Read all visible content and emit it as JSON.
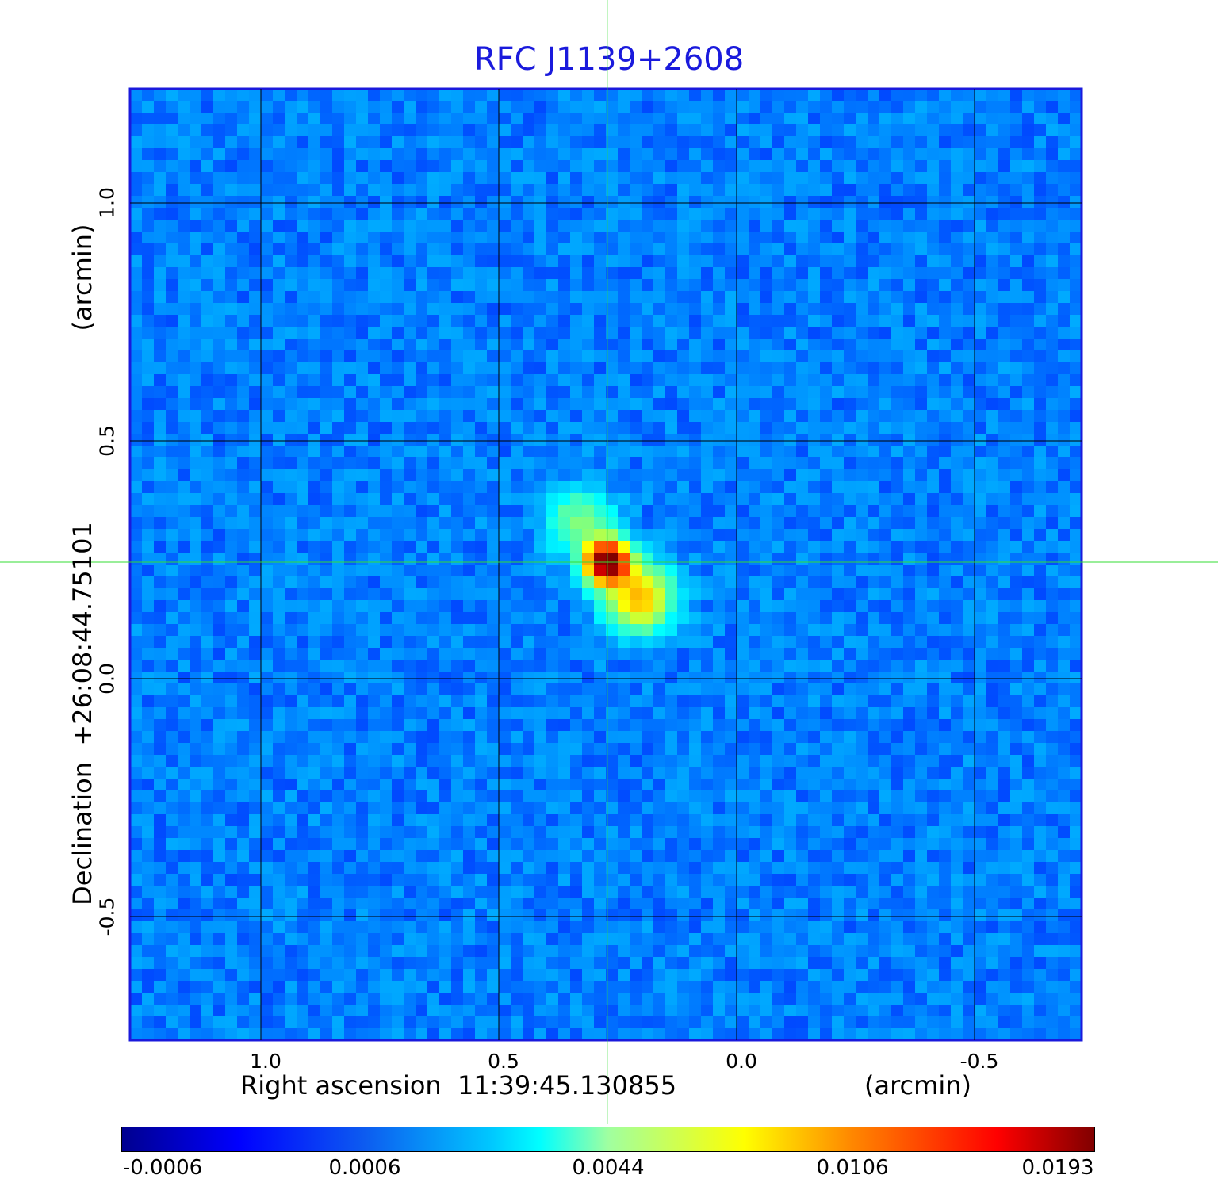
{
  "chart_data": {
    "type": "heatmap",
    "title": "RFC J1139+2608",
    "xlabel": "Right ascension  11:39:45.130855",
    "xunit": "(arcmin)",
    "ylabel": "Declination  +26:08:44.75101",
    "yunit": "(arcmin)",
    "x_ticks": [
      1.0,
      0.5,
      0.0,
      -0.5
    ],
    "x_tick_labels": [
      "1.0",
      "0.5",
      "0.0",
      "-0.5"
    ],
    "y_ticks": [
      1.0,
      0.5,
      0.0,
      -0.5
    ],
    "y_tick_labels": [
      "1.0",
      "0.5",
      "0.0",
      "-0.5"
    ],
    "xlim": [
      1.275,
      -0.725
    ],
    "ylim": [
      -0.76,
      1.24
    ],
    "grid": true,
    "crosshair": {
      "x": 0.272,
      "y": 0.245,
      "color": "#33dd33"
    },
    "colorbar": {
      "ticks": [
        "-0.0006",
        "0.0006",
        "0.0044",
        "0.0106",
        "0.0193"
      ],
      "min": -0.0006,
      "max": 0.0193,
      "colormap": "jet"
    },
    "source": {
      "peak_x": 0.272,
      "peak_y": 0.245,
      "peak_value": 0.0193,
      "jet_components": [
        {
          "x": 0.33,
          "y": 0.33,
          "value": 0.0032
        },
        {
          "x": 0.205,
          "y": 0.17,
          "value": 0.0075
        }
      ]
    },
    "colors": {
      "title": "#1a1adc",
      "grid": "#000000",
      "background_map": "#1f5fe8"
    }
  }
}
